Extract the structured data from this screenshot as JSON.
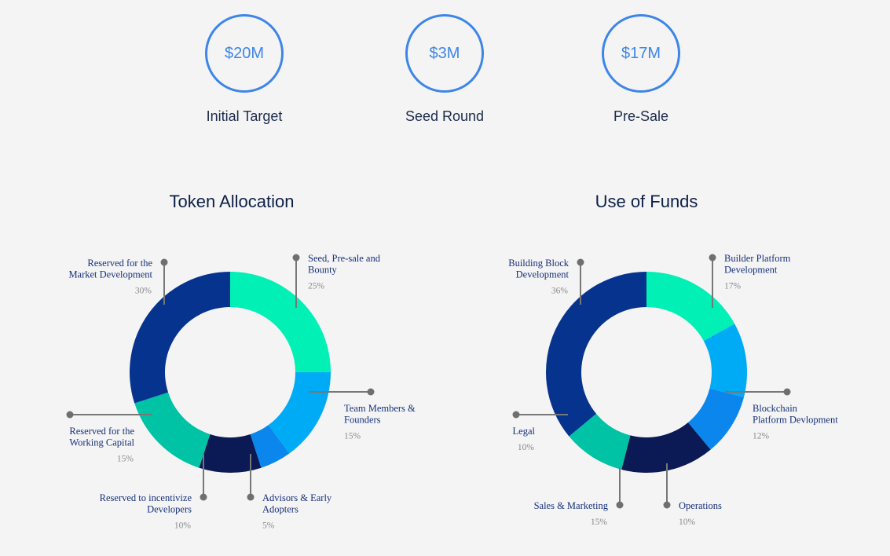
{
  "stats": [
    {
      "value": "$20M",
      "label": "Initial Target"
    },
    {
      "value": "$3M",
      "label": "Seed Round"
    },
    {
      "value": "$17M",
      "label": "Pre-Sale"
    }
  ],
  "chart_data": [
    {
      "type": "pie",
      "title": "Token Allocation",
      "slices": [
        {
          "label": [
            "Seed, Pre-sale and",
            "Bounty"
          ],
          "value": 25,
          "pct": "25%",
          "color": "#00f0b5"
        },
        {
          "label": [
            "Team Members &",
            "Founders"
          ],
          "value": 15,
          "pct": "15%",
          "color": "#00abf5"
        },
        {
          "label": [
            "Advisors & Early",
            "Adopters"
          ],
          "value": 5,
          "pct": "5%",
          "color": "#0a86ed"
        },
        {
          "label": [
            "Reserved to incentivize",
            "Developers"
          ],
          "value": 10,
          "pct": "10%",
          "color": "#0b1a55"
        },
        {
          "label": [
            "Reserved for the",
            "Working Capital"
          ],
          "value": 15,
          "pct": "15%",
          "color": "#00c3a6"
        },
        {
          "label": [
            "Reserved for the",
            "Market Development"
          ],
          "value": 30,
          "pct": "30%",
          "color": "#06338e"
        }
      ]
    },
    {
      "type": "pie",
      "title": "Use of Funds",
      "slices": [
        {
          "label": [
            "Builder Platform",
            "Development"
          ],
          "value": 17,
          "pct": "17%",
          "color": "#00f0b5"
        },
        {
          "label": [
            "Blockchain",
            "Platform Devlopment"
          ],
          "value": 12,
          "pct": "12%",
          "color": "#00abf5"
        },
        {
          "label": [
            "Operations"
          ],
          "value": 10,
          "pct": "10%",
          "color": "#0a86ed"
        },
        {
          "label": [
            "Sales & Marketing"
          ],
          "value": 15,
          "pct": "15%",
          "color": "#0b1a55"
        },
        {
          "label": [
            "Legal"
          ],
          "value": 10,
          "pct": "10%",
          "color": "#00c3a6"
        },
        {
          "label": [
            "Building Block",
            "Development"
          ],
          "value": 36,
          "pct": "36%",
          "color": "#06338e"
        }
      ]
    }
  ]
}
